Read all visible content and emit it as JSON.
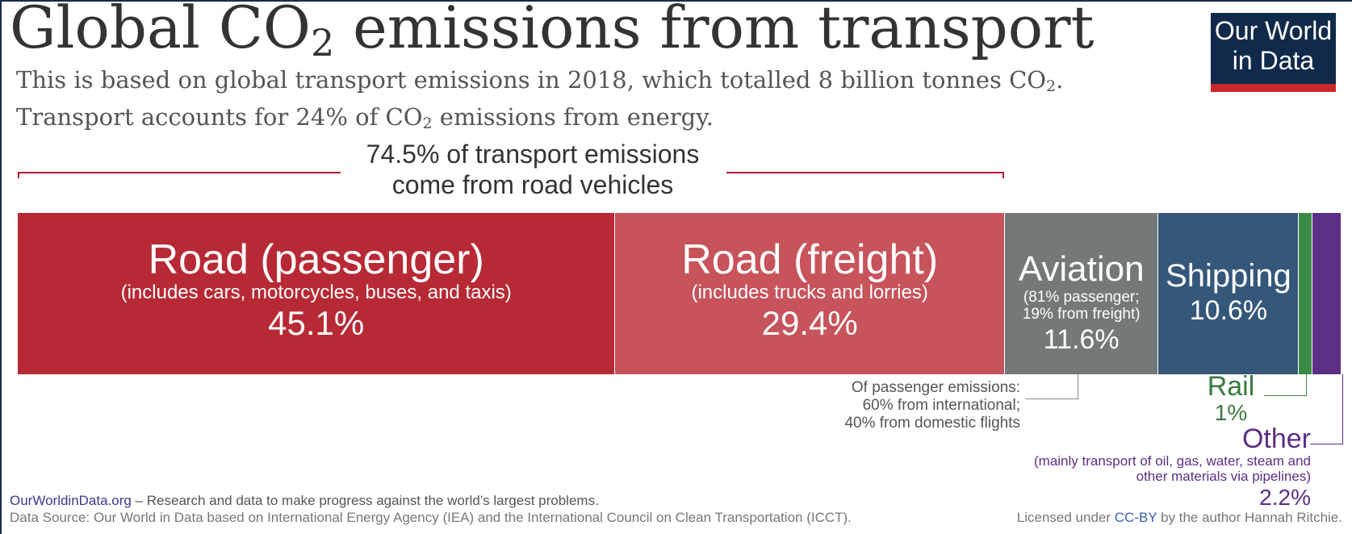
{
  "header": {
    "title_main": "Global CO",
    "title_sub": "2",
    "title_rest": " emissions from transport",
    "subtitle_line1_a": "This is based on global transport emissions in 2018, which totalled 8 billion tonnes CO",
    "subtitle_line1_sub": "2",
    "subtitle_line1_b": ".",
    "subtitle_line2_a": "Transport accounts for 24% of CO",
    "subtitle_line2_sub": "2",
    "subtitle_line2_b": " emissions from energy."
  },
  "logo": {
    "text": "Our World\nin Data"
  },
  "road_annotation": "74.5% of transport emissions\ncome from road vehicles",
  "chart_data": {
    "type": "bar",
    "orientation": "horizontal-stacked",
    "title": "Global CO₂ emissions from transport",
    "total": "8 billion tonnes CO₂ (2018)",
    "categories": [
      "Road (passenger)",
      "Road (freight)",
      "Aviation",
      "Shipping",
      "Rail",
      "Other"
    ],
    "values": [
      45.1,
      29.4,
      11.6,
      10.6,
      1,
      2.2
    ],
    "labels": [
      "45.1%",
      "29.4%",
      "11.6%",
      "10.6%",
      "1%",
      "2.2%"
    ],
    "descriptions": [
      "(includes cars, motorcycles, buses, and taxis)",
      "(includes trucks and lorries)",
      "(81% passenger;\n19% from freight)",
      "",
      "",
      "(mainly transport of oil, gas, water, steam and\nother materials via pipelines)"
    ],
    "colors": [
      "#b72a35",
      "#c7535b",
      "#737878",
      "#34577a",
      "#3a8a45",
      "#5d2e86"
    ]
  },
  "aviation_note": "Of passenger emissions:\n60% from international;\n40% from domestic flights",
  "footer": {
    "site": "OurWorldinData.org",
    "tagline": " – Research and data to make progress against the world’s largest problems.",
    "source": "Data Source: Our World in Data based on International Energy Agency (IEA) and the International Council on Clean Transportation (ICCT).",
    "license_a": "Licensed under ",
    "license_link": "CC-BY",
    "license_b": " by the author Hannah Ritchie."
  }
}
